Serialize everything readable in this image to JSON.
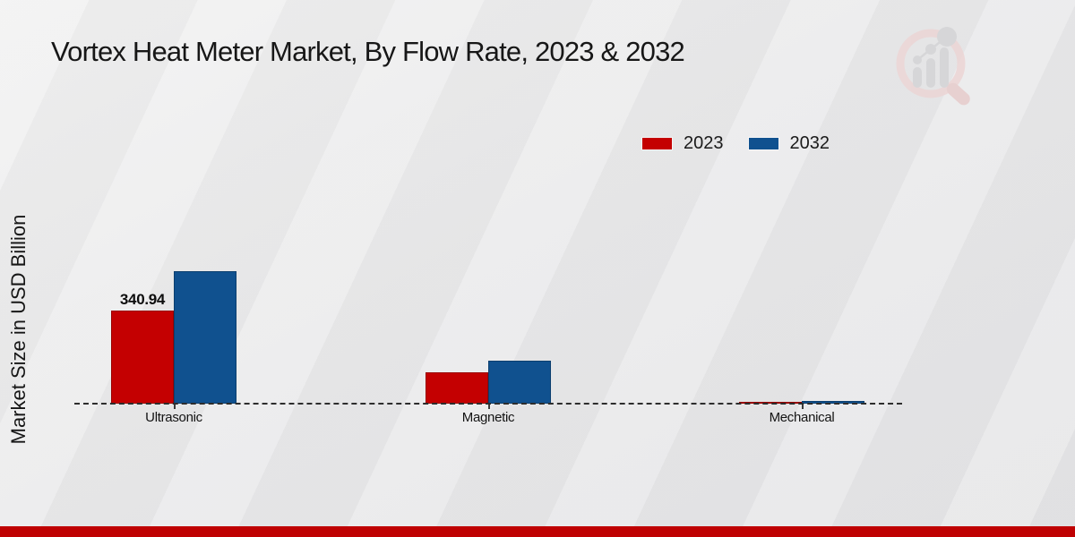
{
  "page": {
    "title": "Vortex Heat Meter Market, By Flow Rate, 2023 & 2032",
    "y_axis_label": "Market Size in USD Billion"
  },
  "legend": {
    "items": [
      {
        "label": "2023",
        "color": "#c40001"
      },
      {
        "label": "2032",
        "color": "#10518f"
      }
    ]
  },
  "chart_data": {
    "type": "bar",
    "title": "Vortex Heat Meter Market, By Flow Rate, 2023 & 2032",
    "xlabel": "",
    "ylabel": "Market Size in USD Billion",
    "categories": [
      "Ultrasonic",
      "Magnetic",
      "Mechanical"
    ],
    "series": [
      {
        "name": "2023",
        "color": "#c40001",
        "values": [
          340.94,
          115,
          6.5
        ]
      },
      {
        "name": "2032",
        "color": "#10518f",
        "values": [
          485,
          156,
          10
        ]
      }
    ],
    "data_labels": [
      {
        "series": "2023",
        "category": "Ultrasonic",
        "text": "340.94"
      }
    ],
    "ylim": [
      0,
      520
    ],
    "grid": false,
    "baseline_style": "dashed",
    "legend_position": "top-right"
  },
  "watermark": {
    "name": "market-research-magnifier-logo"
  },
  "footer": {
    "stripe_color": "#bf0102"
  }
}
